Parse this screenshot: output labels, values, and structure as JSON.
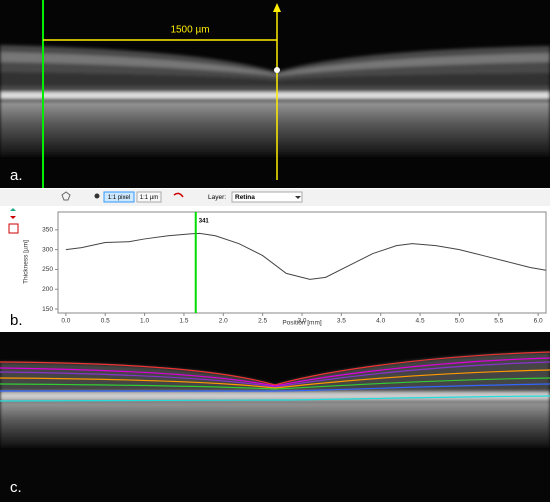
{
  "panels": {
    "a": {
      "label": "a.",
      "annotation": "1500 µm"
    },
    "b": {
      "label": "b."
    },
    "c": {
      "label": "c."
    }
  },
  "toolbar": {
    "button_pixel": "1:1 pixel",
    "button_um": "1:1 µm",
    "layer_label": "Layer:",
    "layer_value": "Retina"
  },
  "chart_data": {
    "type": "line",
    "x_label": "Position [mm]",
    "y_label": "Thickness [µm]",
    "x": [
      0.0,
      0.2,
      0.5,
      0.8,
      1.0,
      1.3,
      1.6,
      1.7,
      1.9,
      2.2,
      2.5,
      2.8,
      3.1,
      3.3,
      3.6,
      3.9,
      4.2,
      4.4,
      4.7,
      5.0,
      5.3,
      5.6,
      5.9,
      6.1
    ],
    "values": [
      300,
      305,
      318,
      320,
      327,
      335,
      340,
      341,
      335,
      315,
      285,
      240,
      225,
      230,
      260,
      290,
      310,
      315,
      310,
      300,
      285,
      270,
      255,
      248
    ],
    "color": "#444444",
    "marker": {
      "x": 1.65,
      "value": 341,
      "color": "#00dd00"
    },
    "xlim": [
      -0.1,
      6.1
    ],
    "ylim": [
      140,
      395
    ],
    "xticks": [
      {
        "value": 0,
        "label": "0.0"
      },
      0.5,
      {
        "value": 1,
        "label": "1.0"
      },
      1.5,
      {
        "value": 2,
        "label": "2.0"
      },
      2.5,
      {
        "value": 3,
        "label": "3.0"
      },
      3.5,
      {
        "value": 4,
        "label": "4.0"
      },
      4.5,
      {
        "value": 5,
        "label": "5.0"
      },
      5.5,
      {
        "value": 6,
        "label": "6.0"
      }
    ],
    "yticks": [
      150,
      200,
      250,
      300,
      350
    ],
    "grid": false
  }
}
